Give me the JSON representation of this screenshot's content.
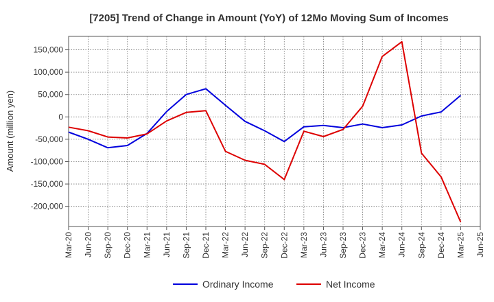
{
  "chart_data": {
    "type": "line",
    "title": "[7205]  Trend of Change in Amount (YoY) of 12Mo Moving Sum of Incomes",
    "xlabel": "",
    "ylabel": "Amount (million yen)",
    "ylim": [
      -245000,
      180000
    ],
    "yticks": [
      150000,
      100000,
      50000,
      0,
      -50000,
      -100000,
      -150000,
      -200000
    ],
    "ytick_labels": [
      "150,000",
      "100,000",
      "50,000",
      "0",
      "-50,000",
      "-100,000",
      "-150,000",
      "-200,000"
    ],
    "categories": [
      "Mar-20",
      "Jun-20",
      "Sep-20",
      "Dec-20",
      "Mar-21",
      "Jun-21",
      "Sep-21",
      "Dec-21",
      "Mar-22",
      "Jun-22",
      "Sep-22",
      "Dec-22",
      "Mar-23",
      "Jun-23",
      "Sep-23",
      "Dec-23",
      "Mar-24",
      "Jun-24",
      "Sep-24",
      "Dec-24",
      "Mar-25",
      "Jun-25"
    ],
    "grid": true,
    "legend_position": "bottom",
    "series": [
      {
        "name": "Ordinary Income",
        "color": "#0000dd",
        "values": [
          -34000,
          -50000,
          -69000,
          -64000,
          -37000,
          12000,
          50000,
          63000,
          26000,
          -10000,
          -31000,
          -55000,
          -22000,
          -19000,
          -24000,
          -16000,
          -24000,
          -18000,
          2000,
          11000,
          48000,
          null
        ]
      },
      {
        "name": "Net Income",
        "color": "#dd0000",
        "values": [
          -23000,
          -31000,
          -45000,
          -47000,
          -38000,
          -9000,
          10000,
          14000,
          -77000,
          -97000,
          -106000,
          -140000,
          -32000,
          -44000,
          -28000,
          24000,
          135000,
          168000,
          -81000,
          -134000,
          -235000,
          null
        ]
      }
    ]
  }
}
